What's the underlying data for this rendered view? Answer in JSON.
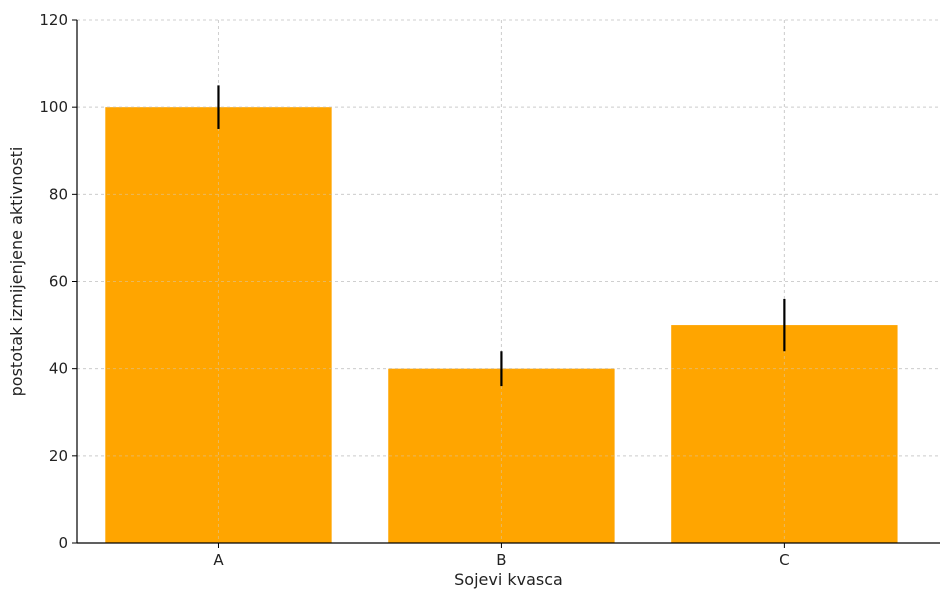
{
  "chart_data": {
    "type": "bar",
    "categories": [
      "A",
      "B",
      "C"
    ],
    "values": [
      100,
      40,
      50
    ],
    "errors": [
      5,
      4,
      6
    ],
    "xlabel": "Sojevi kvasca",
    "ylabel": "postotak izmijenjene aktivnosti",
    "ylim": [
      0,
      120
    ],
    "yticks": [
      0,
      20,
      40,
      60,
      80,
      100,
      120
    ],
    "grid": true,
    "bar_color": "#ffa500",
    "error_color": "#000000"
  }
}
